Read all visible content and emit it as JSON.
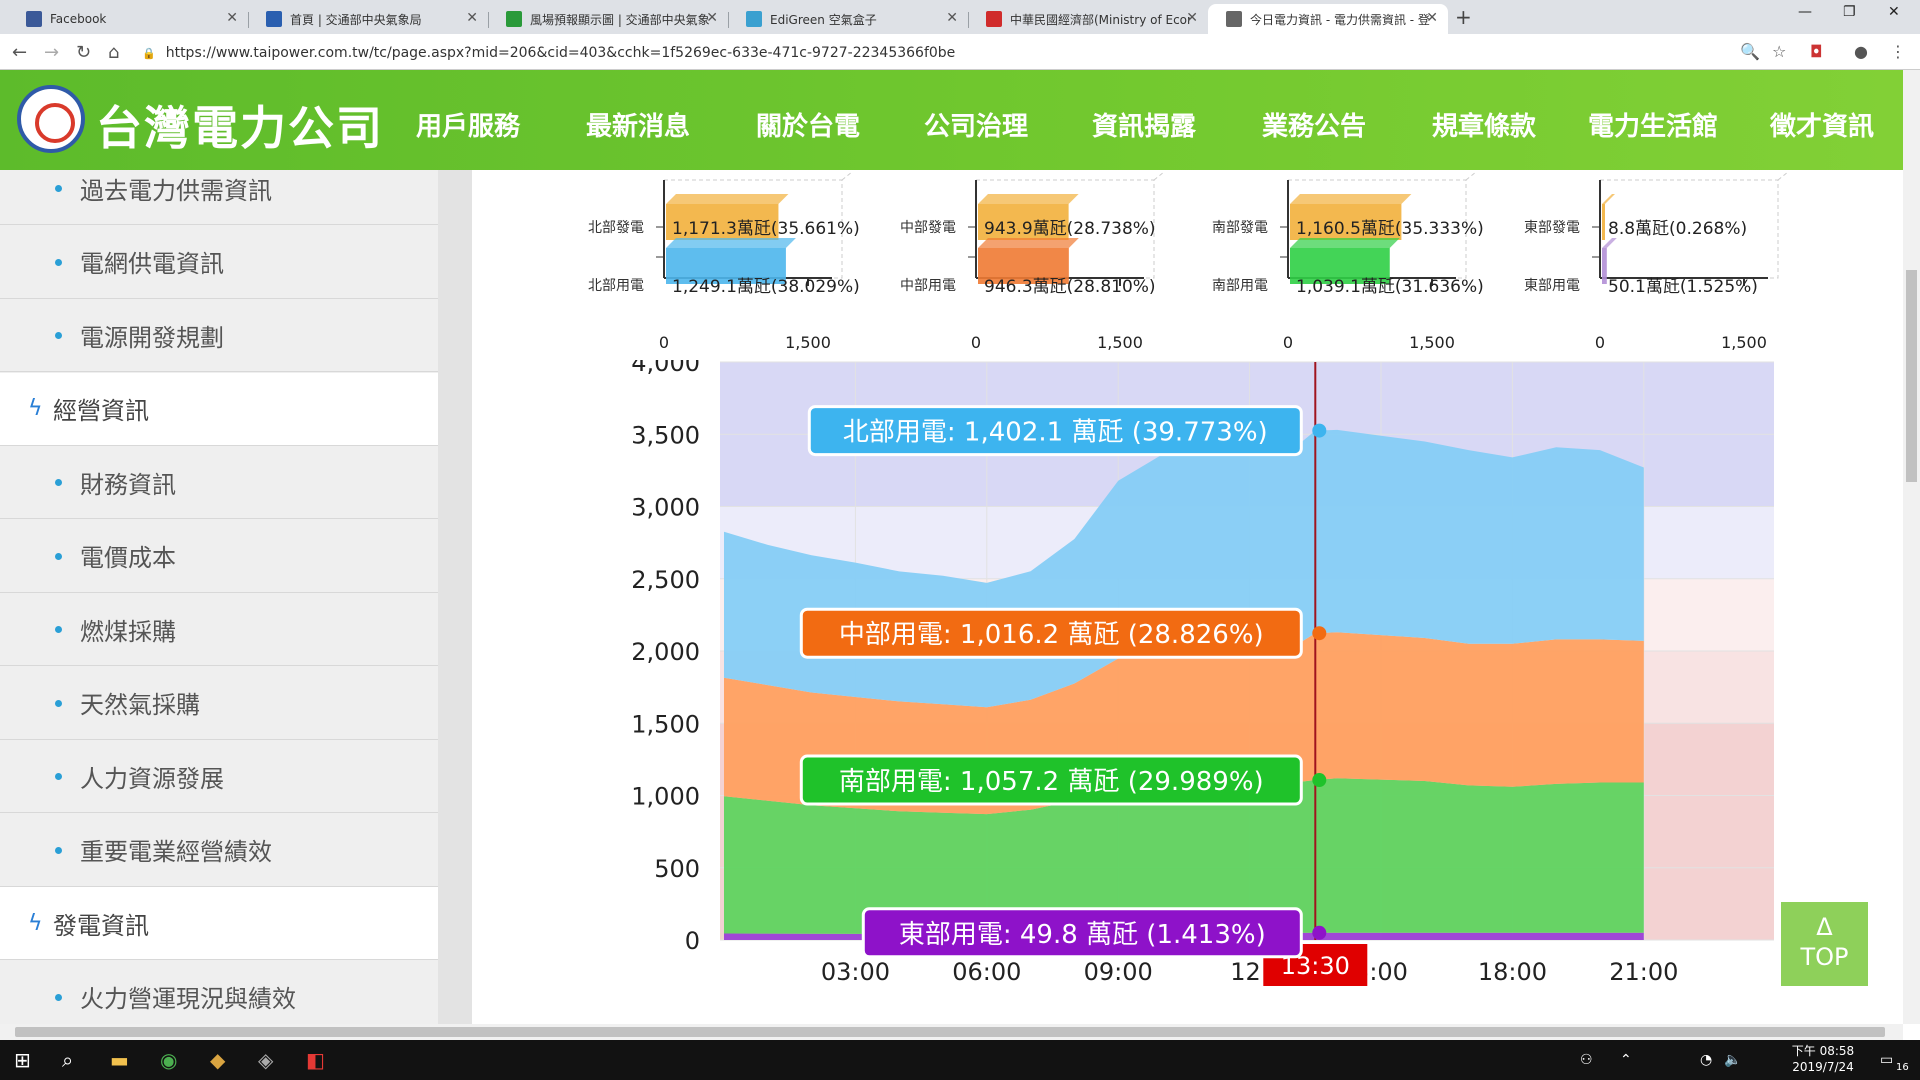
{
  "browser": {
    "tabs": [
      {
        "title": "Facebook",
        "color": "#3b5998",
        "active": false
      },
      {
        "title": "首頁 | 交通部中央氣象局",
        "color": "#2a5fb0",
        "active": false
      },
      {
        "title": "風場預報顯示圖 | 交通部中央氣象",
        "color": "#2a9a3a",
        "active": false
      },
      {
        "title": "EdiGreen 空氣盒子",
        "color": "#3aa0d0",
        "active": false
      },
      {
        "title": "中華民國經濟部(Ministry of Econ",
        "color": "#d02b2b",
        "active": false
      },
      {
        "title": "今日電力資訊 - 電力供需資訊 - 登",
        "color": "#666",
        "active": true
      }
    ],
    "url": "https://www.taipower.com.tw/tc/page.aspx?mid=206&cid=403&cchk=1f5269ec-633e-471c-9727-22345366f0be"
  },
  "site": {
    "logo_text": "台灣電力公司",
    "nav": [
      "用戶服務",
      "最新消息",
      "關於台電",
      "公司治理",
      "資訊揭露",
      "業務公告",
      "規章條款",
      "電力生活館",
      "徵才資訊"
    ]
  },
  "sidebar": {
    "items": [
      {
        "label": "過去電力供需資訊",
        "type": "sub"
      },
      {
        "label": "電網供電資訊",
        "type": "sub"
      },
      {
        "label": "電源開發規劃",
        "type": "sub"
      },
      {
        "label": "經營資訊",
        "type": "sect"
      },
      {
        "label": "財務資訊",
        "type": "sub"
      },
      {
        "label": "電價成本",
        "type": "sub"
      },
      {
        "label": "燃煤採購",
        "type": "sub"
      },
      {
        "label": "天然氣採購",
        "type": "sub"
      },
      {
        "label": "人力資源發展",
        "type": "sub"
      },
      {
        "label": "重要電業經營績效",
        "type": "sub"
      },
      {
        "label": "發電資訊",
        "type": "sect"
      },
      {
        "label": "火力營運現況與績效",
        "type": "sub"
      }
    ]
  },
  "bar_charts": [
    {
      "gen_label": "北部發電",
      "use_label": "北部用電",
      "gen_text": "1,171.3萬瓩(35.661%)",
      "use_text": "1,249.1萬瓩(38.029%)",
      "gen": 1171.3,
      "use": 1249.1,
      "gen_color": "#f2b03c",
      "use_color": "#4db6ec",
      "tick0": "0",
      "tick1": "1,500"
    },
    {
      "gen_label": "中部發電",
      "use_label": "中部用電",
      "gen_text": "943.9萬瓩(28.738%)",
      "use_text": "946.3萬瓩(28.810%)",
      "gen": 943.9,
      "use": 946.3,
      "gen_color": "#f2b03c",
      "use_color": "#f07a33",
      "tick0": "0",
      "tick1": "1,500"
    },
    {
      "gen_label": "南部發電",
      "use_label": "南部用電",
      "gen_text": "1,160.5萬瓩(35.333%)",
      "use_text": "1,039.1萬瓩(31.636%)",
      "gen": 1160.5,
      "use": 1039.1,
      "gen_color": "#f2b03c",
      "use_color": "#2fcf45",
      "tick0": "0",
      "tick1": "1,500"
    },
    {
      "gen_label": "東部發電",
      "use_label": "東部用電",
      "gen_text": "8.8萬瓩(0.268%)",
      "use_text": "50.1萬瓩(1.525%)",
      "gen": 8.8,
      "use": 50.1,
      "gen_color": "#f2b03c",
      "use_color": "#b28fd6",
      "tick0": "0",
      "tick1": "1,500"
    }
  ],
  "chart_data": {
    "type": "area",
    "x": [
      "00:00",
      "01:00",
      "02:00",
      "03:00",
      "04:00",
      "05:00",
      "06:00",
      "07:00",
      "08:00",
      "09:00",
      "10:00",
      "11:00",
      "12:00",
      "13:00",
      "13:30",
      "14:00",
      "15:00",
      "16:00",
      "17:00",
      "18:00",
      "19:00",
      "20:00",
      "21:00"
    ],
    "series": [
      {
        "name": "東部用電",
        "color": "#9b3fd6",
        "values": [
          45,
          44,
          43,
          42,
          41,
          41,
          41,
          42,
          45,
          48,
          49,
          50,
          49,
          49,
          49.8,
          50,
          50,
          50,
          50,
          50,
          50,
          50,
          50
        ]
      },
      {
        "name": "南部用電",
        "color": "#5fd35f",
        "values": [
          950,
          920,
          890,
          870,
          850,
          840,
          830,
          860,
          920,
          1020,
          1060,
          1080,
          1050,
          1040,
          1057.2,
          1070,
          1060,
          1050,
          1020,
          1010,
          1030,
          1040,
          1040
        ]
      },
      {
        "name": "中部用電",
        "color": "#ffa060",
        "values": [
          820,
          800,
          780,
          770,
          760,
          750,
          740,
          760,
          810,
          880,
          920,
          940,
          930,
          940,
          1016.2,
          1010,
          1000,
          990,
          980,
          990,
          1000,
          990,
          980
        ]
      },
      {
        "name": "北部用電",
        "color": "#86cdf5",
        "values": [
          1010,
          970,
          950,
          930,
          900,
          890,
          860,
          890,
          1000,
          1230,
          1330,
          1370,
          1380,
          1370,
          1402.1,
          1400,
          1380,
          1360,
          1340,
          1290,
          1330,
          1310,
          1200
        ]
      }
    ],
    "yticks": [
      "0",
      "500",
      "1,000",
      "1,500",
      "2,000",
      "2,500",
      "3,000",
      "3,500",
      "4,000"
    ],
    "ylim": [
      0,
      4000
    ],
    "xticks": [
      "03:00",
      "06:00",
      "09:00",
      "12:",
      "5:00",
      "18:00",
      "21:00"
    ],
    "xtick_values": [
      "03:00",
      "06:00",
      "09:00",
      "12:00",
      "15:00",
      "18:00",
      "21:00"
    ],
    "current_time": "13:30",
    "tooltips": [
      {
        "text": "北部用電: 1,402.1 萬瓩 (39.773%)",
        "bg": "#3db4ef",
        "value": 3525.3
      },
      {
        "text": "中部用電: 1,016.2 萬瓩 (28.826%)",
        "bg": "#f26b12",
        "value": 2123.2
      },
      {
        "text": "南部用電: 1,057.2 萬瓩 (29.989%)",
        "bg": "#1fc22a",
        "value": 1107
      },
      {
        "text": "東部用電: 49.8 萬瓩 (1.413%)",
        "bg": "#8e12c9",
        "value": 49.8
      }
    ],
    "bands": [
      {
        "from": 3000,
        "to": 4000,
        "color": "#d8d8f5"
      },
      {
        "from": 2500,
        "to": 3000,
        "color": "#ececfa"
      },
      {
        "from": 2000,
        "to": 2500,
        "color": "#fbeeee"
      },
      {
        "from": 1500,
        "to": 2000,
        "color": "#f8e3e3"
      },
      {
        "from": 0,
        "to": 1500,
        "color": "#f3d2d2"
      }
    ]
  },
  "top_button": {
    "arrow": "Δ",
    "label": "TOP"
  },
  "taskbar": {
    "time": "下午 08:58",
    "date": "2019/7/24",
    "notif": "16"
  }
}
